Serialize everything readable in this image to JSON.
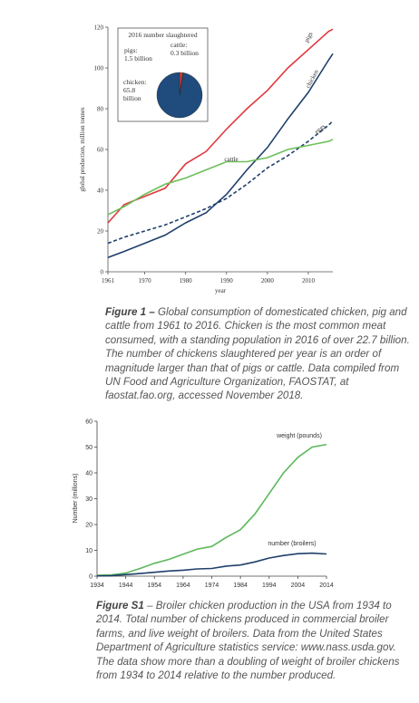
{
  "chart_data": [
    {
      "type": "line",
      "xlabel": "year",
      "ylabel": "global production, million tonnes",
      "x": [
        1961,
        1965,
        1970,
        1975,
        1980,
        1985,
        1990,
        1995,
        2000,
        2005,
        2010,
        2015,
        2016
      ],
      "xlim": [
        1961,
        2016
      ],
      "xticks": [
        1961,
        1970,
        1980,
        1990,
        2000,
        2010
      ],
      "ylim": [
        0,
        120
      ],
      "yticks": [
        0,
        20,
        40,
        60,
        80,
        100,
        120
      ],
      "series": [
        {
          "name": "pigs",
          "color": "#e0393e",
          "linestyle": "solid",
          "values": [
            24,
            33,
            37,
            41,
            53,
            59,
            70,
            80,
            89,
            100,
            109,
            118,
            119
          ]
        },
        {
          "name": "chicken",
          "color": "#1f3f6b",
          "linestyle": "solid",
          "values": [
            7,
            10,
            14,
            18,
            24,
            29,
            38,
            50,
            61,
            75,
            88,
            104,
            107
          ]
        },
        {
          "name": "eggs",
          "color": "#1f3f6b",
          "linestyle": "dashed",
          "values": [
            14,
            17,
            20,
            23,
            27,
            31,
            36,
            43,
            51,
            57,
            64,
            72,
            74
          ]
        },
        {
          "name": "cattle",
          "color": "#6cbf5a",
          "linestyle": "solid",
          "values": [
            28,
            32,
            38,
            43,
            46,
            50,
            54,
            54,
            56,
            60,
            62,
            64,
            65
          ]
        }
      ],
      "inset": {
        "type": "pie",
        "title": "2016 number slaughtered",
        "categories": [
          "pigs:",
          "cattle:",
          "chicken:"
        ],
        "values": [
          1.5,
          0.3,
          65.8
        ],
        "value_labels": [
          "1.5 billion",
          "0.3 billion",
          "65.8 billion"
        ],
        "colors": [
          "#e0393e",
          "#6cbf5a",
          "#1f4b7d"
        ]
      },
      "caption_label": "Figure 1 –",
      "caption": "Global consumption of domesticated chicken, pig and cattle from 1961 to 2016. Chicken is the most common meat consumed, with a standing population in 2016 of over 22.7 billion. The number of chickens slaughtered per year is an order of magnitude larger than that of pigs or cattle. Data compiled from UN Food and Agriculture Organization, FAOSTAT, at faostat.fao.org, accessed November 2018."
    },
    {
      "type": "line",
      "ylabel": "Number (millions)",
      "x": [
        1934,
        1939,
        1944,
        1949,
        1954,
        1959,
        1964,
        1969,
        1974,
        1979,
        1984,
        1989,
        1994,
        1999,
        2004,
        2009,
        2014
      ],
      "xlim": [
        1934,
        2014
      ],
      "xticks": [
        1934,
        1944,
        1954,
        1964,
        1974,
        1984,
        1994,
        2004,
        2014
      ],
      "ylim": [
        0,
        60
      ],
      "yticks": [
        0,
        10,
        20,
        30,
        40,
        50,
        60
      ],
      "series": [
        {
          "name": "weight (pounds)",
          "color": "#5cb85c",
          "linestyle": "solid",
          "values": [
            0.3,
            0.5,
            1.2,
            3,
            5,
            6.5,
            8.5,
            10.5,
            11.5,
            15,
            18,
            24,
            32,
            40,
            46,
            50,
            51
          ]
        },
        {
          "name": "number (broilers)",
          "color": "#1f3f6b",
          "linestyle": "solid",
          "values": [
            0.1,
            0.2,
            0.6,
            1,
            1.5,
            2,
            2.3,
            2.8,
            3,
            3.9,
            4.3,
            5.5,
            7,
            8,
            8.7,
            8.9,
            8.6
          ]
        }
      ],
      "caption_label": "Figure S1",
      "caption": "– Broiler chicken production in the USA from 1934 to 2014. Total number of chickens produced in commercial broiler farms, and live weight of broilers. Data from the United States Department of Agriculture statistics service: www.nass.usda.gov. The data show more than a doubling of weight of broiler chickens from 1934 to 2014 relative to the number produced."
    }
  ]
}
